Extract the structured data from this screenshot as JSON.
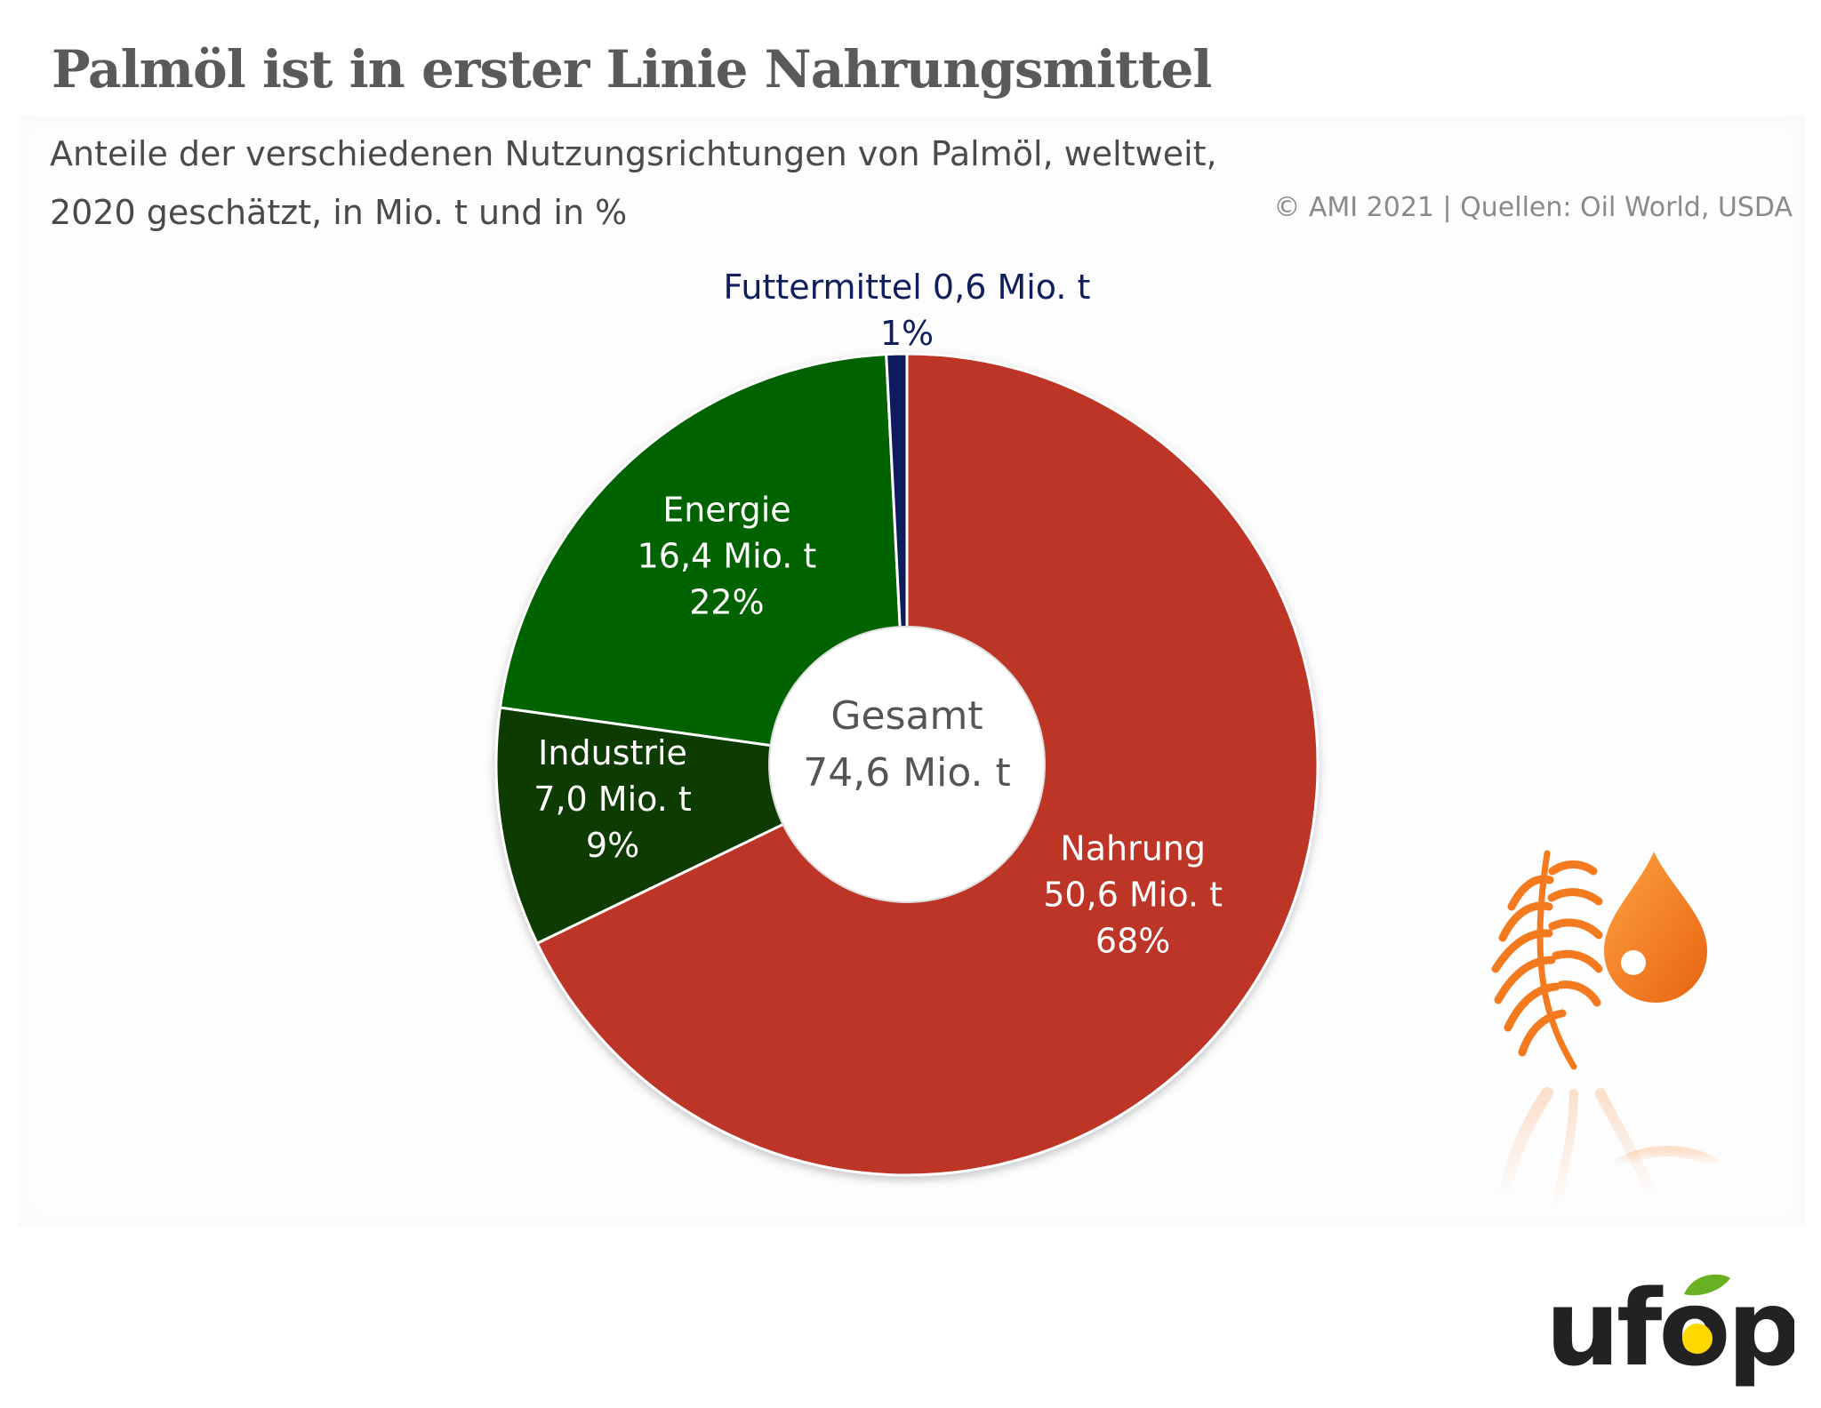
{
  "header": {
    "title": "Palmöl ist in erster Linie Nahrungsmittel",
    "subtitle_line1": "Anteile der verschiedenen Nutzungsrichtungen von Palmöl, weltweit,",
    "subtitle_line2": "2020 geschätzt, in Mio. t und in %",
    "source": "© AMI 2021 | Quellen: Oil World, USDA"
  },
  "chart_data": {
    "type": "pie",
    "variant": "donut",
    "unit": "Mio. t",
    "center_label": [
      "Gesamt",
      "74,6 Mio. t"
    ],
    "total": 74.6,
    "slices": [
      {
        "name": "Nahrung",
        "value": 50.6,
        "value_label": "50,6 Mio. t",
        "percent": 68,
        "percent_label": "68%",
        "color": "#bd3528"
      },
      {
        "name": "Industrie",
        "value": 7.0,
        "value_label": "7,0 Mio. t",
        "percent": 9,
        "percent_label": "9%",
        "color": "#0b3b06"
      },
      {
        "name": "Energie",
        "value": 16.4,
        "value_label": "16,4 Mio. t",
        "percent": 22,
        "percent_label": "22%",
        "color": "#066306"
      },
      {
        "name": "Futtermittel",
        "value": 0.6,
        "value_label": "0,6 Mio. t",
        "percent": 1,
        "percent_label": "1%",
        "color": "#0f1f5c"
      }
    ],
    "start_angle": "top",
    "direction": "clockwise",
    "legend": "none",
    "grid": false
  },
  "decoration": {
    "icons": [
      "palm-leaf-icon",
      "oil-drop-icon"
    ],
    "accent": "#f47a1f"
  },
  "logo": {
    "text": "ufop",
    "leaf_color": "#6ab023",
    "dot_color": "#ffd800"
  }
}
